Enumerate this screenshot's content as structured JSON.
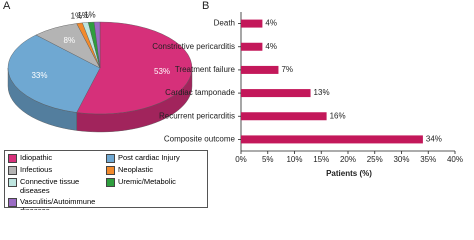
{
  "chart_data": [
    {
      "type": "pie",
      "panel": "A",
      "categories": [
        "Idiopathic",
        "Post cardiac Injury",
        "Infectious",
        "Neoplastic",
        "Connective tissue diseases",
        "Uremic/Metabolic",
        "Vasculitis/Autoimmune diseases"
      ],
      "values": [
        53,
        33,
        8,
        1,
        1,
        1,
        1
      ],
      "value_labels": [
        "53%",
        "33%",
        "8%",
        "1%",
        "1%",
        "1%",
        null
      ],
      "colors": [
        "#d6307a",
        "#6fa8d2",
        "#b4b4b4",
        "#f28a2c",
        "#bfe6e0",
        "#2e9e3e",
        "#9b6cc4"
      ]
    },
    {
      "type": "hbar",
      "panel": "B",
      "categories": [
        "Death",
        "Constrictive pericarditis",
        "Treatment failure",
        "Cardiac tamponade",
        "Recurrent pericarditis",
        "Composite outcome"
      ],
      "values": [
        4,
        4,
        7,
        13,
        16,
        34
      ],
      "value_labels": [
        "4%",
        "4%",
        "7%",
        "13%",
        "16%",
        "34%"
      ],
      "color": "#c3185a",
      "xlabel": "Patients (%)",
      "xlim": [
        0,
        40
      ],
      "xticks": [
        {
          "value": 0,
          "label": "0%"
        },
        {
          "value": 5,
          "label": "5%"
        },
        {
          "value": 10,
          "label": "10%"
        },
        {
          "value": 15,
          "label": "15%"
        },
        {
          "value": 20,
          "label": "20%"
        },
        {
          "value": 25,
          "label": "25%"
        },
        {
          "value": 30,
          "label": "30%"
        },
        {
          "value": 35,
          "label": "35%"
        },
        {
          "value": 40,
          "label": "40%"
        }
      ]
    }
  ]
}
